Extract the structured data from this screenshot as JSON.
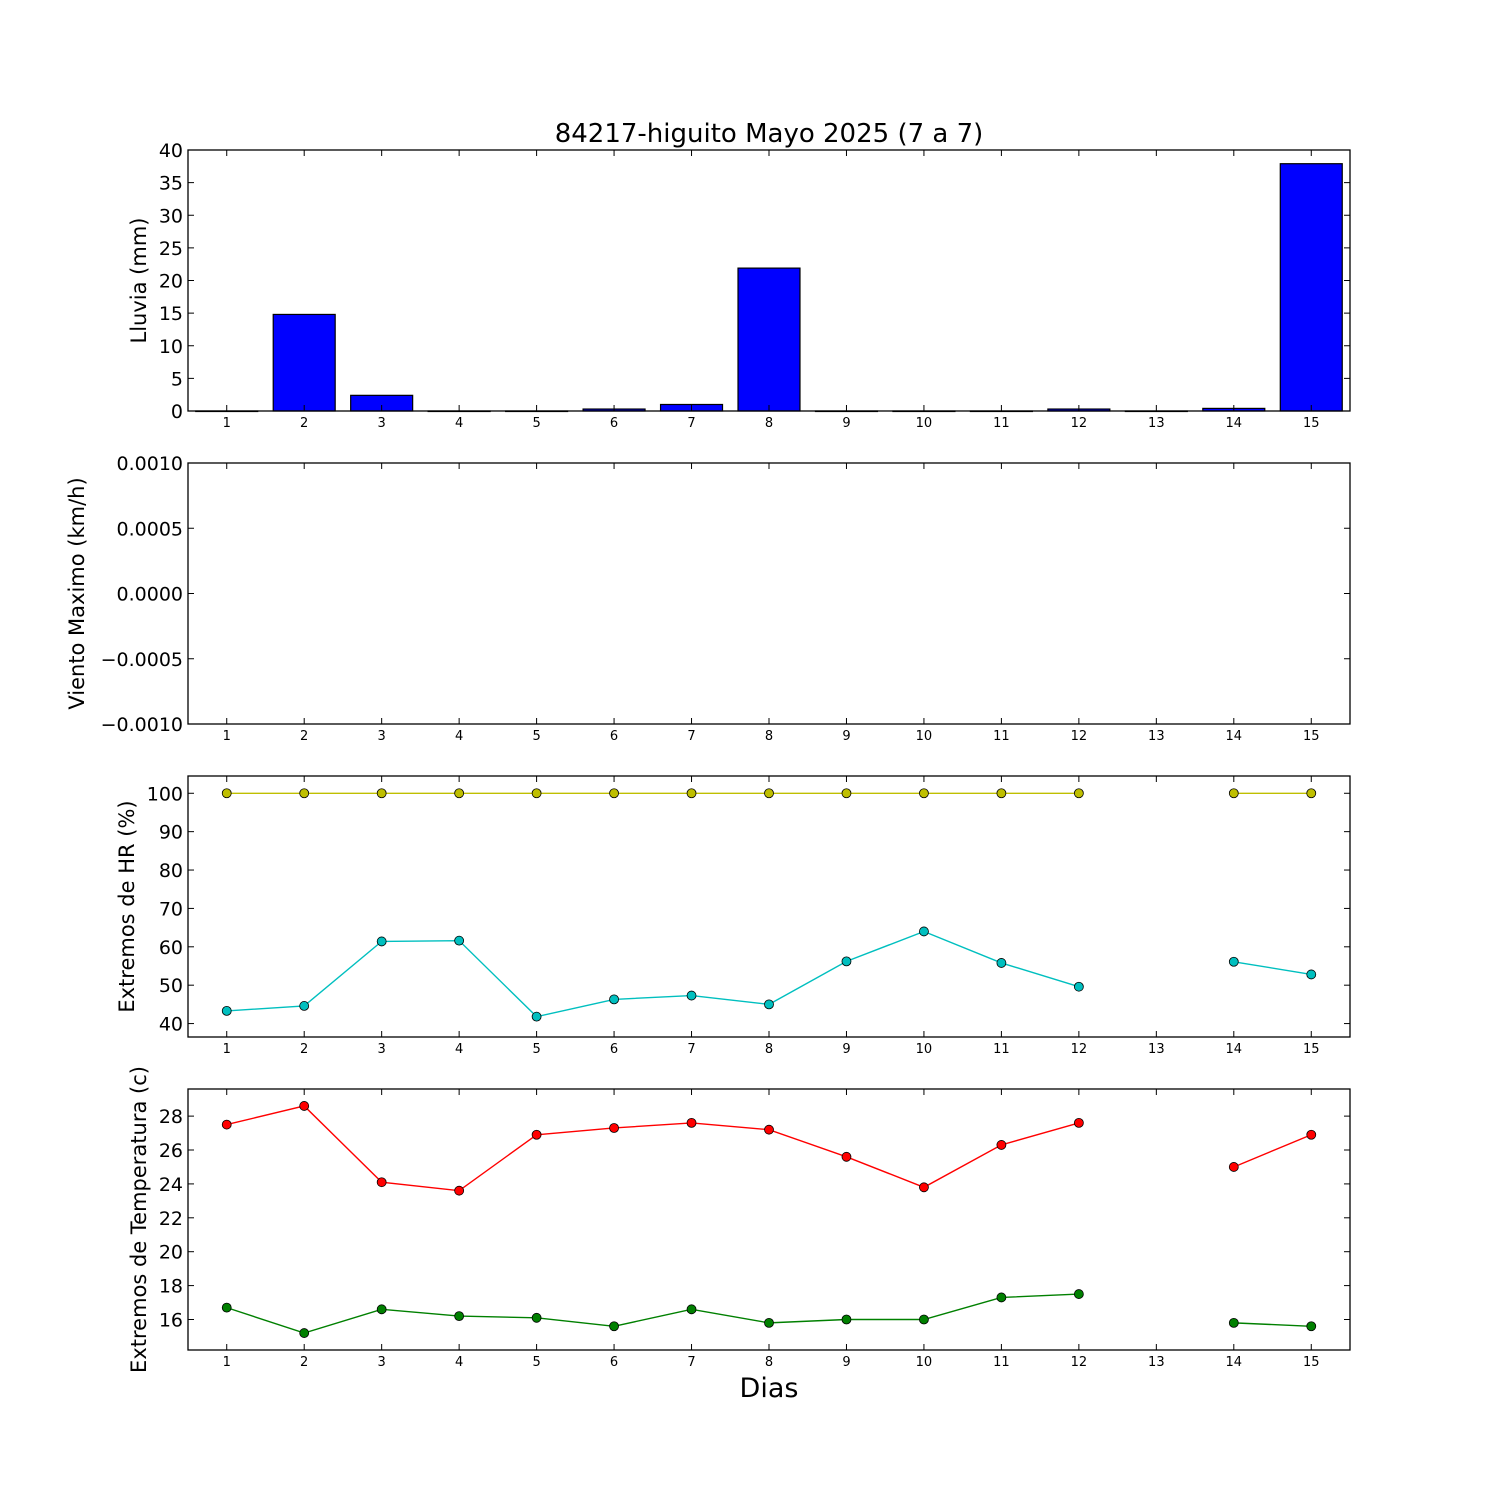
{
  "title": "84217-higuito Mayo 2025  (7 a 7)",
  "xlabel": "Dias",
  "colors": {
    "bar": "#0000ff",
    "hr_max": "#bfbf00",
    "hr_min": "#00bfbf",
    "t_max": "#ff0000",
    "t_min": "#008000"
  },
  "chart_data": [
    {
      "type": "bar",
      "id": "lluvia",
      "ylabel": "Lluvia (mm)",
      "ylim": [
        0,
        40
      ],
      "yticks": [
        0,
        5,
        10,
        15,
        20,
        25,
        30,
        35,
        40
      ],
      "ytick_labels": [
        "0",
        "5",
        "10",
        "15",
        "20",
        "25",
        "30",
        "35",
        "40"
      ],
      "x": [
        1,
        2,
        3,
        4,
        5,
        6,
        7,
        8,
        9,
        10,
        11,
        12,
        13,
        14,
        15
      ],
      "xtick_labels": [
        "1",
        "2",
        "3",
        "4",
        "5",
        "6",
        "7",
        "8",
        "9",
        "10",
        "11",
        "12",
        "13",
        "14",
        "15"
      ],
      "values": [
        0,
        14.8,
        2.4,
        0,
        0,
        0.3,
        1.0,
        21.9,
        0,
        0,
        0,
        0.3,
        0,
        0.4,
        37.9
      ]
    },
    {
      "type": "line",
      "id": "viento",
      "ylabel": "Viento Maximo (km/h)",
      "ylim": [
        -0.001,
        0.001
      ],
      "yticks": [
        -0.001,
        -0.0005,
        0,
        0.0005,
        0.001
      ],
      "ytick_labels": [
        "−0.0010",
        "−0.0005",
        "0.0000",
        "0.0005",
        "0.0010"
      ],
      "x": [
        1,
        2,
        3,
        4,
        5,
        6,
        7,
        8,
        9,
        10,
        11,
        12,
        13,
        14,
        15
      ],
      "xtick_labels": [
        "1",
        "2",
        "3",
        "4",
        "5",
        "6",
        "7",
        "8",
        "9",
        "10",
        "11",
        "12",
        "13",
        "14",
        "15"
      ],
      "series": []
    },
    {
      "type": "line",
      "id": "hr",
      "ylabel": "Extremos de HR (%)",
      "ylim": [
        36.5,
        104.5
      ],
      "yticks": [
        40,
        50,
        60,
        70,
        80,
        90,
        100
      ],
      "ytick_labels": [
        "40",
        "50",
        "60",
        "70",
        "80",
        "90",
        "100"
      ],
      "x": [
        1,
        2,
        3,
        4,
        5,
        6,
        7,
        8,
        9,
        10,
        11,
        12,
        13,
        14,
        15
      ],
      "xtick_labels": [
        "1",
        "2",
        "3",
        "4",
        "5",
        "6",
        "7",
        "8",
        "9",
        "10",
        "11",
        "12",
        "13",
        "14",
        "15"
      ],
      "series": [
        {
          "color_key": "hr_max",
          "values": [
            100,
            100,
            100,
            100,
            100,
            100,
            100,
            100,
            100,
            100,
            100,
            100,
            null,
            100,
            100
          ]
        },
        {
          "color_key": "hr_min",
          "values": [
            43.3,
            44.6,
            61.4,
            61.6,
            41.8,
            46.3,
            47.3,
            45.0,
            56.2,
            64.0,
            55.8,
            49.6,
            null,
            56.1,
            52.8
          ]
        }
      ]
    },
    {
      "type": "line",
      "id": "temp",
      "ylabel": "Extremos de Temperatura (c)",
      "ylim": [
        14.2,
        29.6
      ],
      "yticks": [
        16,
        18,
        20,
        22,
        24,
        26,
        28
      ],
      "ytick_labels": [
        "16",
        "18",
        "20",
        "22",
        "24",
        "26",
        "28"
      ],
      "x": [
        1,
        2,
        3,
        4,
        5,
        6,
        7,
        8,
        9,
        10,
        11,
        12,
        13,
        14,
        15
      ],
      "xtick_labels": [
        "1",
        "2",
        "3",
        "4",
        "5",
        "6",
        "7",
        "8",
        "9",
        "10",
        "11",
        "12",
        "13",
        "14",
        "15"
      ],
      "series": [
        {
          "color_key": "t_max",
          "values": [
            27.5,
            28.6,
            24.1,
            23.6,
            26.9,
            27.3,
            27.6,
            27.2,
            25.6,
            23.8,
            26.3,
            27.6,
            null,
            25.0,
            26.9
          ]
        },
        {
          "color_key": "t_min",
          "values": [
            16.7,
            15.2,
            16.6,
            16.2,
            16.1,
            15.6,
            16.6,
            15.8,
            16.0,
            16.0,
            17.3,
            17.5,
            null,
            15.8,
            15.6
          ]
        }
      ]
    }
  ]
}
